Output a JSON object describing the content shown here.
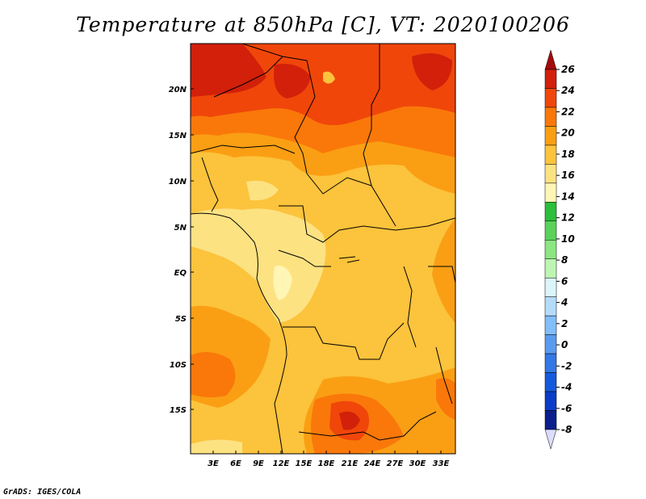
{
  "title": "Temperature at 850hPa [C], VT: 2020100206",
  "footer": "GrADS: IGES/COLA",
  "map": {
    "lat_labels": [
      "20N",
      "15N",
      "10N",
      "5N",
      "EQ",
      "5S",
      "10S",
      "15S"
    ],
    "lon_labels": [
      "3E",
      "6E",
      "9E",
      "12E",
      "15E",
      "18E",
      "21E",
      "24E",
      "27E",
      "30E",
      "33E"
    ]
  },
  "colorbar": {
    "labels": [
      "26",
      "24",
      "22",
      "20",
      "18",
      "16",
      "14",
      "12",
      "10",
      "8",
      "6",
      "4",
      "2",
      "0",
      "-2",
      "-4",
      "-6",
      "-8"
    ],
    "colors": [
      "#a50a0a",
      "#d2200a",
      "#f0460a",
      "#fa780a",
      "#fa9f14",
      "#fcc33c",
      "#fde282",
      "#fff5b4",
      "#2dbe3c",
      "#5ad25a",
      "#8ce682",
      "#bef5b4",
      "#dcf5fa",
      "#b4dcfa",
      "#82befa",
      "#5a9bf0",
      "#3278e6",
      "#145adc",
      "#0a3cc8",
      "#0a1e8c",
      "#dcdcff"
    ]
  }
}
